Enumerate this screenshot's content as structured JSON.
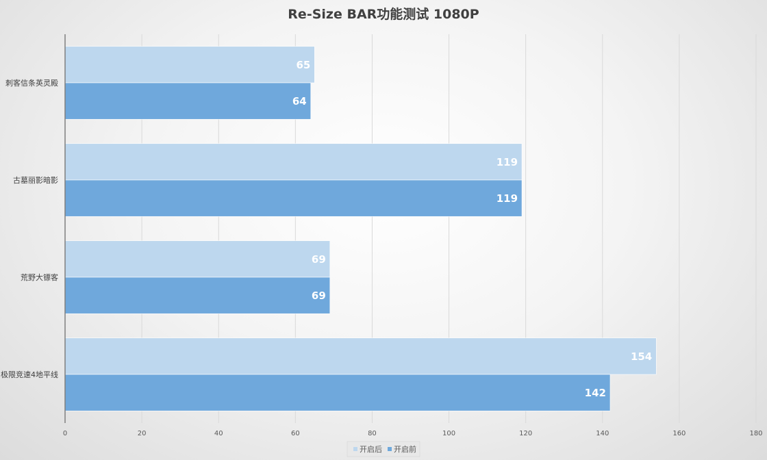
{
  "chart_data": {
    "type": "bar",
    "orientation": "horizontal",
    "title": "Re-Size BAR功能测试 1080P",
    "categories": [
      "刺客信条英灵殿",
      "古墓丽影暗影",
      "荒野大镖客",
      "极限竞速4地平线"
    ],
    "series": [
      {
        "name": "开启后",
        "values": [
          65,
          119,
          69,
          154
        ],
        "color": "#bdd7ee"
      },
      {
        "name": "开启前",
        "values": [
          64,
          119,
          69,
          142
        ],
        "color": "#6fa8dc"
      }
    ],
    "xlim": [
      0,
      180
    ],
    "xticks": [
      0,
      20,
      40,
      60,
      80,
      100,
      120,
      140,
      160,
      180
    ],
    "grid": "vertical",
    "legend": "bottom",
    "data_labels": true
  }
}
